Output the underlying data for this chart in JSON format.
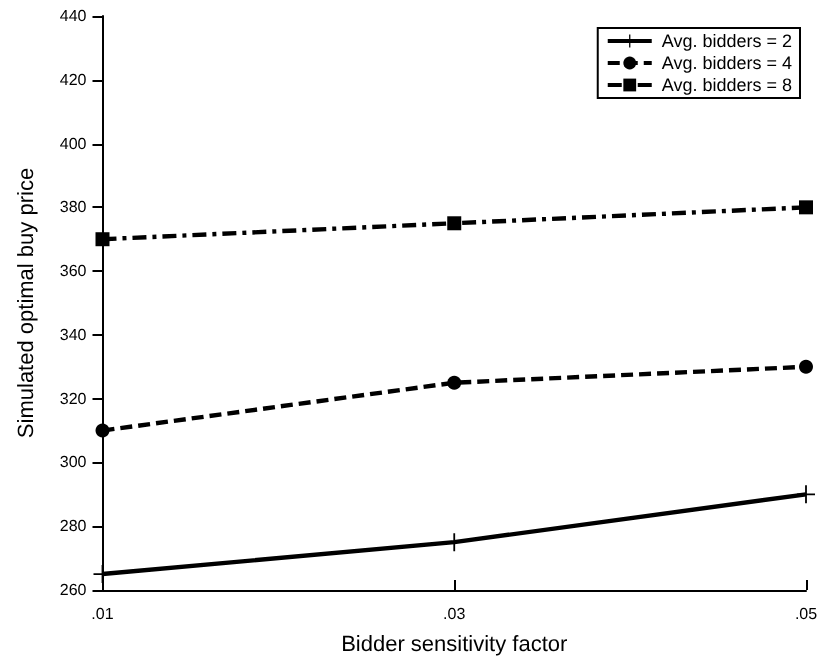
{
  "chart_data": {
    "type": "line",
    "xlabel": "Bidder sensitivity factor",
    "ylabel": "Simulated optimal buy price",
    "x": [
      0.01,
      0.03,
      0.05
    ],
    "series": [
      {
        "name": "Avg. bidders = 2",
        "color": "#000000",
        "values": [
          265,
          275,
          290
        ],
        "marker": "cross",
        "line_style": "solid"
      },
      {
        "name": "Avg. bidders = 4",
        "color": "#000000",
        "values": [
          310,
          325,
          330
        ],
        "marker": "circle",
        "line_style": "dashed"
      },
      {
        "name": "Avg. bidders = 8",
        "color": "#000000",
        "values": [
          370,
          375,
          380
        ],
        "marker": "square",
        "line_style": "dotted"
      }
    ],
    "xlim": [
      0.01,
      0.05
    ],
    "xticks": [
      {
        "value": 0.01,
        "label": ".01"
      },
      {
        "value": 0.03,
        "label": ".03"
      },
      {
        "value": 0.05,
        "label": ".05"
      }
    ],
    "ylim": [
      260,
      440
    ],
    "yticks": [
      260,
      280,
      300,
      320,
      340,
      360,
      380,
      400,
      420,
      440
    ],
    "grid": false,
    "legend": "top right"
  }
}
